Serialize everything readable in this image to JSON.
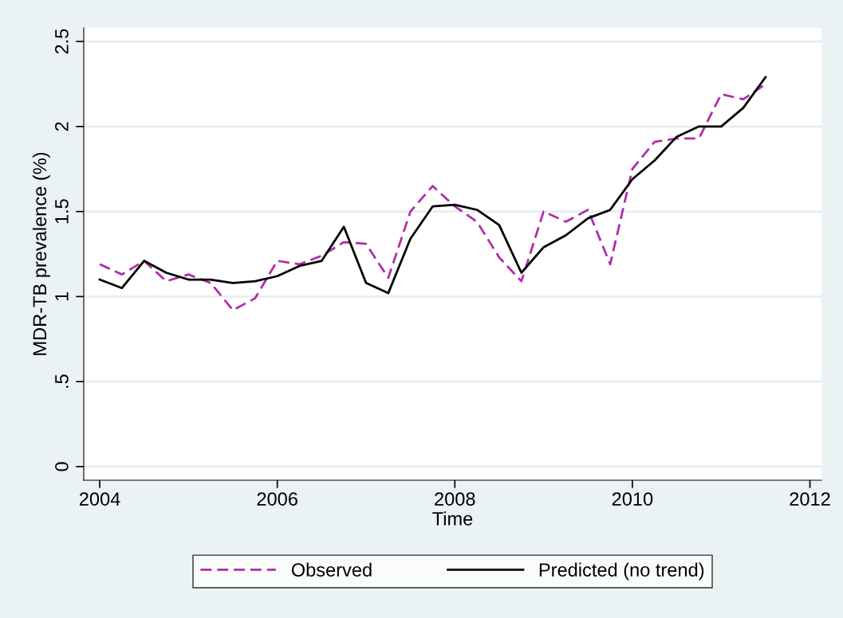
{
  "chart_data": {
    "type": "line",
    "xlabel": "Time",
    "ylabel": "MDR-TB prevalence (%)",
    "x": [
      2004,
      2004.25,
      2004.5,
      2004.75,
      2005,
      2005.25,
      2005.5,
      2005.75,
      2006,
      2006.25,
      2006.5,
      2006.75,
      2007,
      2007.25,
      2007.5,
      2007.75,
      2008,
      2008.25,
      2008.5,
      2008.75,
      2009,
      2009.25,
      2009.5,
      2009.75,
      2010,
      2010.25,
      2010.5,
      2010.75,
      2011,
      2011.25,
      2011.5
    ],
    "series": [
      {
        "name": "Observed",
        "color": "#b02da8",
        "line_style": "dashed",
        "values": [
          1.19,
          1.13,
          1.21,
          1.09,
          1.13,
          1.08,
          0.92,
          0.99,
          1.21,
          1.19,
          1.24,
          1.32,
          1.31,
          1.11,
          1.5,
          1.65,
          1.53,
          1.44,
          1.23,
          1.09,
          1.5,
          1.44,
          1.51,
          1.19,
          1.75,
          1.91,
          1.93,
          1.93,
          2.19,
          2.16,
          2.25
        ]
      },
      {
        "name": "Predicted (no trend)",
        "color": "#000000",
        "line_style": "solid",
        "values": [
          1.1,
          1.05,
          1.21,
          1.14,
          1.1,
          1.1,
          1.08,
          1.09,
          1.12,
          1.18,
          1.21,
          1.41,
          1.08,
          1.02,
          1.34,
          1.53,
          1.54,
          1.51,
          1.42,
          1.14,
          1.29,
          1.36,
          1.46,
          1.51,
          1.69,
          1.8,
          1.94,
          2.0,
          2.0,
          2.11,
          2.29
        ]
      }
    ],
    "xlim": [
      2003.82,
      2012.13
    ],
    "xticks": [
      2004,
      2006,
      2008,
      2010,
      2012
    ],
    "ylim": [
      -0.08,
      2.58
    ],
    "yticks": [
      0,
      {
        "value": 0.5,
        "label": ".5"
      },
      1,
      1.5,
      2,
      2.5
    ],
    "grid": "y",
    "legend": "bottom"
  }
}
